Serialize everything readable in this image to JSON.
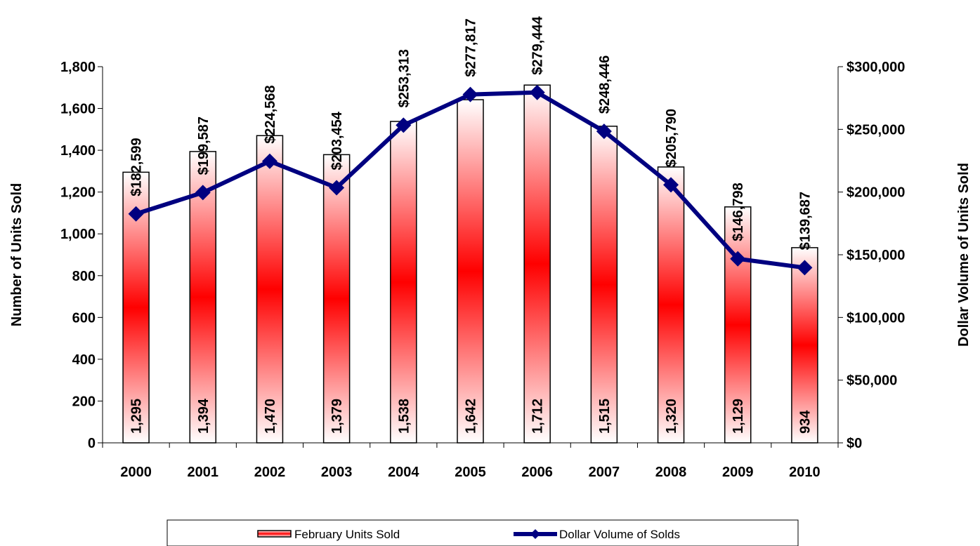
{
  "chart_data": {
    "type": "bar",
    "categories": [
      "2000",
      "2001",
      "2002",
      "2003",
      "2004",
      "2005",
      "2006",
      "2007",
      "2008",
      "2009",
      "2010"
    ],
    "series": [
      {
        "name": "February Units Sold",
        "type": "bar",
        "axis": "left",
        "values": [
          1295,
          1394,
          1470,
          1379,
          1538,
          1642,
          1712,
          1515,
          1320,
          1129,
          934
        ],
        "labels": [
          "1,295",
          "1,394",
          "1,470",
          "1,379",
          "1,538",
          "1,642",
          "1,712",
          "1,515",
          "1,320",
          "1,129",
          "934"
        ]
      },
      {
        "name": "Dollar Volume of Solds",
        "type": "line",
        "axis": "right",
        "values": [
          182599,
          199587,
          224568,
          203454,
          253313,
          277817,
          279444,
          248446,
          205790,
          146798,
          139687
        ],
        "labels": [
          "$182,599",
          "$199,587",
          "$224,568",
          "$203,454",
          "$253,313",
          "$277,817",
          "$279,444",
          "$248,446",
          "$205,790",
          "$146,798",
          "$139,687"
        ]
      }
    ],
    "ylabel": "Number of Units Sold",
    "y2label": "Dollar Volume of Units Sold",
    "ylim": [
      0,
      1800
    ],
    "y2lim": [
      0,
      300000
    ],
    "yticks": [
      "0",
      "200",
      "400",
      "600",
      "800",
      "1,000",
      "1,200",
      "1,400",
      "1,600",
      "1,800"
    ],
    "y2ticks": [
      "$0",
      "$50,000",
      "$100,000",
      "$150,000",
      "$200,000",
      "$250,000",
      "$300,000"
    ],
    "grid": false,
    "legend_position": "bottom",
    "colors": {
      "bar_fill": "#ff0000",
      "bar_edge": "#000000",
      "line": "#000080",
      "marker": "#000080"
    }
  }
}
